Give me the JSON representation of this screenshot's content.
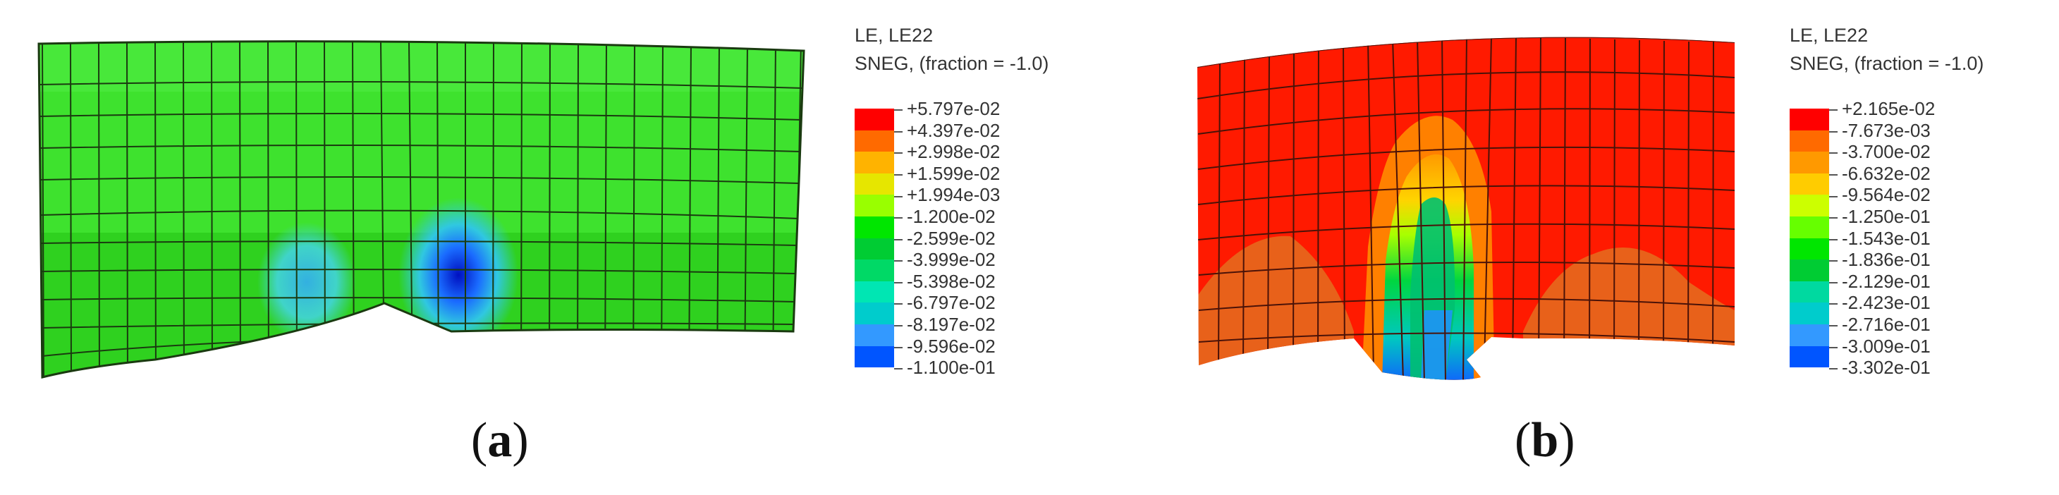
{
  "panels": [
    {
      "id": "a",
      "caption_open": "(",
      "caption_letter": "a",
      "caption_close": ")",
      "legend": {
        "title_line1": "LE, LE22",
        "title_line2": "SNEG, (fraction = -1.0)",
        "labels": [
          "+5.797e-02",
          "+4.397e-02",
          "+2.998e-02",
          "+1.599e-02",
          "+1.994e-03",
          "-1.200e-02",
          "-2.599e-02",
          "-3.999e-02",
          "-5.398e-02",
          "-6.797e-02",
          "-8.197e-02",
          "-9.596e-02",
          "-1.100e-01"
        ],
        "colors": [
          "#ff0000",
          "#ff6a00",
          "#ffb300",
          "#e6e600",
          "#99ff00",
          "#00e600",
          "#00cc33",
          "#00d966",
          "#00e6b3",
          "#00cccc",
          "#3399ff",
          "#0055ff",
          "#0000cc"
        ]
      }
    },
    {
      "id": "b",
      "caption_open": "(",
      "caption_letter": "b",
      "caption_close": ")",
      "legend": {
        "title_line1": "LE, LE22",
        "title_line2": "SNEG, (fraction = -1.0)",
        "labels": [
          "+2.165e-02",
          "-7.673e-03",
          "-3.700e-02",
          "-6.632e-02",
          "-9.564e-02",
          "-1.250e-01",
          "-1.543e-01",
          "-1.836e-01",
          "-2.129e-01",
          "-2.423e-01",
          "-2.716e-01",
          "-3.009e-01",
          "-3.302e-01"
        ],
        "colors": [
          "#ff0000",
          "#ff6a00",
          "#ff9900",
          "#ffcc00",
          "#ccff00",
          "#66ff00",
          "#00e600",
          "#00cc33",
          "#00d9a0",
          "#00cccc",
          "#3399ff",
          "#0055ff",
          "#0000cc"
        ]
      }
    }
  ]
}
